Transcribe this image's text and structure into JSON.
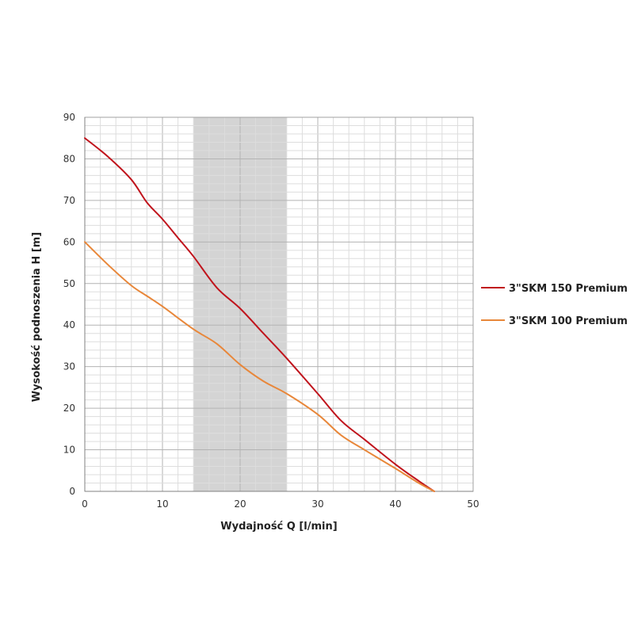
{
  "chart_data": {
    "type": "line",
    "title": "",
    "xlabel": "Wydajność Q [l/min]",
    "ylabel": "Wysokość podnoszenia H [m]",
    "xlim": [
      0,
      50
    ],
    "ylim": [
      0,
      90
    ],
    "x_ticks": [
      "0",
      "10",
      "20",
      "30",
      "40",
      "50"
    ],
    "y_ticks": [
      "0",
      "10",
      "20",
      "30",
      "40",
      "50",
      "60",
      "70",
      "80",
      "90"
    ],
    "grid": true,
    "legend_position": "right",
    "highlight_band": [
      14,
      26
    ],
    "series": [
      {
        "name": "3\"SKM 150 Premium",
        "color": "#c0141c",
        "points": [
          [
            0,
            85
          ],
          [
            3,
            80.5
          ],
          [
            6,
            75
          ],
          [
            8,
            69.5
          ],
          [
            10,
            65.5
          ],
          [
            12,
            61
          ],
          [
            14,
            56.5
          ],
          [
            17,
            49
          ],
          [
            20,
            44
          ],
          [
            23,
            38
          ],
          [
            26,
            32
          ],
          [
            30,
            23.5
          ],
          [
            33,
            17
          ],
          [
            36,
            12.5
          ],
          [
            40,
            6.5
          ],
          [
            43,
            2.5
          ],
          [
            45,
            0
          ]
        ]
      },
      {
        "name": "3\"SKM 100 Premium",
        "color": "#e8873a",
        "points": [
          [
            0,
            60
          ],
          [
            3,
            54.5
          ],
          [
            6,
            49.5
          ],
          [
            8,
            47
          ],
          [
            10,
            44.5
          ],
          [
            14,
            39
          ],
          [
            17,
            35.5
          ],
          [
            20,
            30.5
          ],
          [
            23,
            26.5
          ],
          [
            26,
            23.5
          ],
          [
            30,
            18.5
          ],
          [
            33,
            13.5
          ],
          [
            36,
            10
          ],
          [
            40,
            5.5
          ],
          [
            43,
            2
          ],
          [
            45,
            0
          ]
        ]
      }
    ]
  }
}
